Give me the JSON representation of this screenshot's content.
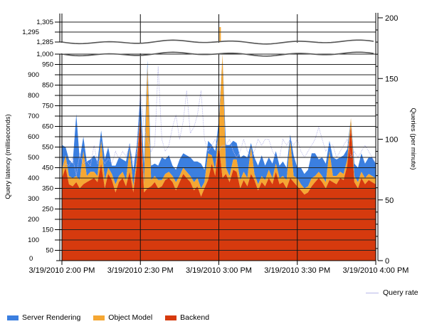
{
  "chart_data": {
    "type": "area",
    "stacked": true,
    "title": "",
    "xlabel": "",
    "ylabel": "Query latency (milliseconds)",
    "y2label": "Queries (per minute)",
    "x_ticks": [
      "3/19/2010 2:00 PM",
      "3/19/2010 2:30 PM",
      "3/19/2010 3:00 PM",
      "3/19/2010 3:30 PM",
      "3/19/2010 4:00 PM"
    ],
    "x_range": [
      "3/19/2010 2:00 PM",
      "3/19/2010 4:00 PM"
    ],
    "y_ticks_lower": [
      "0",
      "50",
      "100",
      "150",
      "200",
      "250",
      "300",
      "350",
      "400",
      "450",
      "500",
      "550",
      "600",
      "650",
      "700",
      "750",
      "800",
      "850",
      "900",
      "950",
      "1,000"
    ],
    "y_ticks_upper": [
      "1,285",
      "1,295",
      "1,305"
    ],
    "y_axis_break": [
      1000,
      1285
    ],
    "ylim": [
      0,
      1305
    ],
    "y2_ticks": [
      "0",
      "50",
      "100",
      "150",
      "200"
    ],
    "y2lim": [
      0,
      200
    ],
    "grid": true,
    "legend_position": "bottom",
    "legend": [
      "Server Rendering",
      "Object Model",
      "Backend"
    ],
    "legend_secondary": [
      "Query rate"
    ],
    "colors": {
      "Server Rendering": "#3b7fe0",
      "Object Model": "#f5a733",
      "Backend": "#d63a0e",
      "Query rate": "#b8b8e8"
    },
    "x_minutes": [
      0,
      1.4,
      2.7,
      4.1,
      5.5,
      6.8,
      8.2,
      9.5,
      10.9,
      12.3,
      13.6,
      15,
      16.4,
      17.7,
      19.1,
      20.5,
      21.8,
      23.2,
      24.5,
      25.9,
      27.3,
      28.6,
      30,
      31.4,
      32.7,
      34.1,
      35.5,
      36.8,
      38.2,
      39.5,
      40.9,
      42.3,
      43.6,
      45,
      46.4,
      47.7,
      49.1,
      50.5,
      51.8,
      53.2,
      54.5,
      55.9,
      57.3,
      58.6,
      60,
      61.4,
      62.7,
      64.1,
      65.5,
      66.8,
      68.2,
      69.5,
      70.9,
      72.3,
      73.6,
      75,
      76.4,
      77.7,
      79.1,
      80.5,
      81.8,
      83.2,
      84.5,
      85.9,
      87.3,
      88.6,
      90,
      91.4,
      92.7,
      94.1,
      95.5,
      96.8,
      98.2,
      99.5,
      100.9,
      102.3,
      103.6,
      105,
      106.4,
      107.7,
      109.1,
      110.5,
      111.8,
      113.2,
      114.5,
      115.9,
      117.3,
      118.6,
      120
    ],
    "series": [
      {
        "name": "Backend",
        "values": [
          400,
          450,
          370,
          360,
          380,
          350,
          370,
          380,
          390,
          400,
          380,
          470,
          350,
          420,
          390,
          330,
          380,
          400,
          360,
          430,
          330,
          460,
          690,
          330,
          350,
          360,
          380,
          350,
          360,
          390,
          400,
          380,
          340,
          380,
          420,
          400,
          380,
          340,
          360,
          310,
          350,
          390,
          470,
          410,
          560,
          400,
          420,
          380,
          440,
          430,
          350,
          390,
          360,
          420,
          390,
          340,
          380,
          360,
          400,
          370,
          430,
          370,
          380,
          350,
          400,
          380,
          360,
          340,
          320,
          330,
          360,
          380,
          400,
          380,
          350,
          390,
          380,
          370,
          400,
          390,
          460,
          650,
          380,
          350,
          400,
          370,
          390,
          380,
          370
        ]
      },
      {
        "name": "Object Model",
        "values": [
          40,
          60,
          40,
          40,
          30,
          40,
          160,
          30,
          40,
          30,
          30,
          110,
          40,
          30,
          30,
          40,
          30,
          30,
          30,
          110,
          30,
          30,
          20,
          40,
          590,
          30,
          30,
          40,
          30,
          30,
          30,
          30,
          40,
          30,
          30,
          30,
          30,
          40,
          40,
          40,
          30,
          130,
          40,
          30,
          80,
          600,
          30,
          30,
          50,
          60,
          40,
          40,
          40,
          130,
          30,
          30,
          30,
          30,
          40,
          30,
          40,
          30,
          30,
          40,
          180,
          30,
          40,
          30,
          30,
          30,
          40,
          30,
          30,
          30,
          30,
          140,
          30,
          40,
          30,
          30,
          30,
          40,
          30,
          30,
          30,
          30,
          30,
          30,
          30
        ]
      },
      {
        "name": "Server Rendering",
        "values": [
          120,
          40,
          80,
          70,
          300,
          100,
          70,
          70,
          60,
          80,
          70,
          50,
          100,
          100,
          40,
          90,
          90,
          60,
          90,
          30,
          80,
          70,
          90,
          100,
          30,
          70,
          60,
          70,
          110,
          70,
          80,
          50,
          60,
          80,
          70,
          80,
          90,
          100,
          80,
          120,
          60,
          60,
          50,
          90,
          40,
          40,
          110,
          150,
          90,
          80,
          110,
          80,
          100,
          20,
          80,
          90,
          100,
          70,
          60,
          70,
          60,
          60,
          70,
          60,
          30,
          100,
          50,
          80,
          70,
          80,
          120,
          110,
          60,
          90,
          90,
          50,
          90,
          80,
          70,
          90,
          50,
          0,
          60,
          70,
          90,
          70,
          80,
          90,
          70
        ]
      },
      {
        "name": "Query rate",
        "axis": "secondary",
        "values": [
          75,
          80,
          78,
          85,
          70,
          88,
          80,
          82,
          78,
          95,
          80,
          85,
          80,
          84,
          80,
          90,
          84,
          90,
          86,
          95,
          80,
          90,
          140,
          110,
          100,
          90,
          95,
          160,
          100,
          90,
          95,
          110,
          120,
          100,
          115,
          140,
          105,
          110,
          120,
          140,
          100,
          90,
          95,
          100,
          90,
          95,
          95,
          100,
          90,
          85,
          90,
          100,
          90,
          85,
          90,
          100,
          95,
          100,
          100,
          90,
          85,
          85,
          100,
          95,
          100,
          95,
          100,
          90,
          85,
          90,
          95,
          100,
          110,
          100,
          90,
          95,
          95,
          85,
          90,
          95,
          100,
          85,
          90,
          85,
          90,
          95,
          90,
          85,
          80
        ]
      }
    ]
  },
  "legend": {
    "items": [
      {
        "label": "Server Rendering",
        "color": "#3b7fe0"
      },
      {
        "label": "Object Model",
        "color": "#f5a733"
      },
      {
        "label": "Backend",
        "color": "#d63a0e"
      }
    ],
    "query_rate": {
      "label": "Query rate",
      "color": "#b8b8e8"
    }
  },
  "axes": {
    "y_title": "Query latency (milliseconds)",
    "y2_title": "Queries (per minute)"
  }
}
